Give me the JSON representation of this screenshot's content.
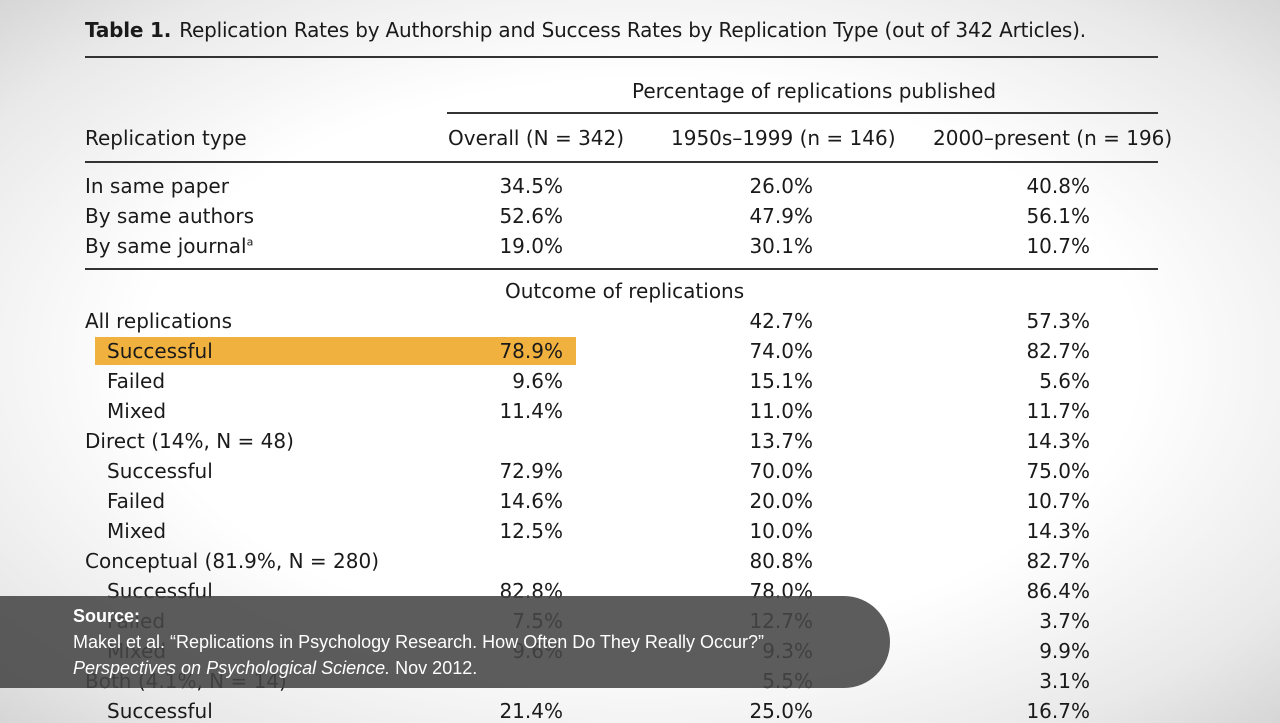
{
  "table": {
    "label": "Table 1.",
    "title": "Replication Rates by Authorship and Success Rates by Replication Type (out of 342 Articles).",
    "group_heading_1": "Percentage of replications published",
    "stub_header": "Replication type",
    "col_headers": [
      "Overall (N = 342)",
      "1950s–1999 (n = 146)",
      "2000–present (n = 196)"
    ],
    "section1_rows": [
      {
        "label": "In same paper",
        "sup": "",
        "values": [
          "34.5%",
          "26.0%",
          "40.8%"
        ]
      },
      {
        "label": "By same authors",
        "sup": "",
        "values": [
          "52.6%",
          "47.9%",
          "56.1%"
        ]
      },
      {
        "label": "By same journal",
        "sup": "a",
        "values": [
          "19.0%",
          "30.1%",
          "10.7%"
        ]
      }
    ],
    "group_heading_2": "Outcome of replications",
    "section2_rows": [
      {
        "label": "All replications",
        "values": [
          "",
          "42.7%",
          "57.3%"
        ]
      },
      {
        "label": "Successful",
        "values": [
          "78.9%",
          "74.0%",
          "82.7%"
        ]
      },
      {
        "label": "Failed",
        "values": [
          "9.6%",
          "15.1%",
          "5.6%"
        ]
      },
      {
        "label": "Mixed",
        "values": [
          "11.4%",
          "11.0%",
          "11.7%"
        ]
      },
      {
        "label": "Direct (14%, N = 48)",
        "values": [
          "",
          "13.7%",
          "14.3%"
        ]
      },
      {
        "label": "Successful",
        "values": [
          "72.9%",
          "70.0%",
          "75.0%"
        ]
      },
      {
        "label": "Failed",
        "values": [
          "14.6%",
          "20.0%",
          "10.7%"
        ]
      },
      {
        "label": "Mixed",
        "values": [
          "12.5%",
          "10.0%",
          "14.3%"
        ]
      },
      {
        "label": "Conceptual (81.9%, N = 280)",
        "values": [
          "",
          "80.8%",
          "82.7%"
        ]
      },
      {
        "label": "Successful",
        "values": [
          "82.8%",
          "78.0%",
          "86.4%"
        ]
      },
      {
        "label": "Failed",
        "values": [
          "7.5%",
          "12.7%",
          "3.7%"
        ]
      },
      {
        "label": "Mixed",
        "values": [
          "9.6%",
          "9.3%",
          "9.9%"
        ]
      },
      {
        "label": "Both (4.1%, N = 14)",
        "values": [
          "",
          "5.5%",
          "3.1%"
        ]
      },
      {
        "label": "Successful",
        "values": [
          "21.4%",
          "25.0%",
          "16.7%"
        ]
      }
    ],
    "highlight_color": "#f0b13f"
  },
  "caption": {
    "label": "Source:",
    "line1": "Makel et al. “Replications in Psychology Research. How Often Do They Really Occur?”",
    "line2_italic": "Perspectives on Psychological Science.",
    "line2_rest": " Nov 2012."
  }
}
